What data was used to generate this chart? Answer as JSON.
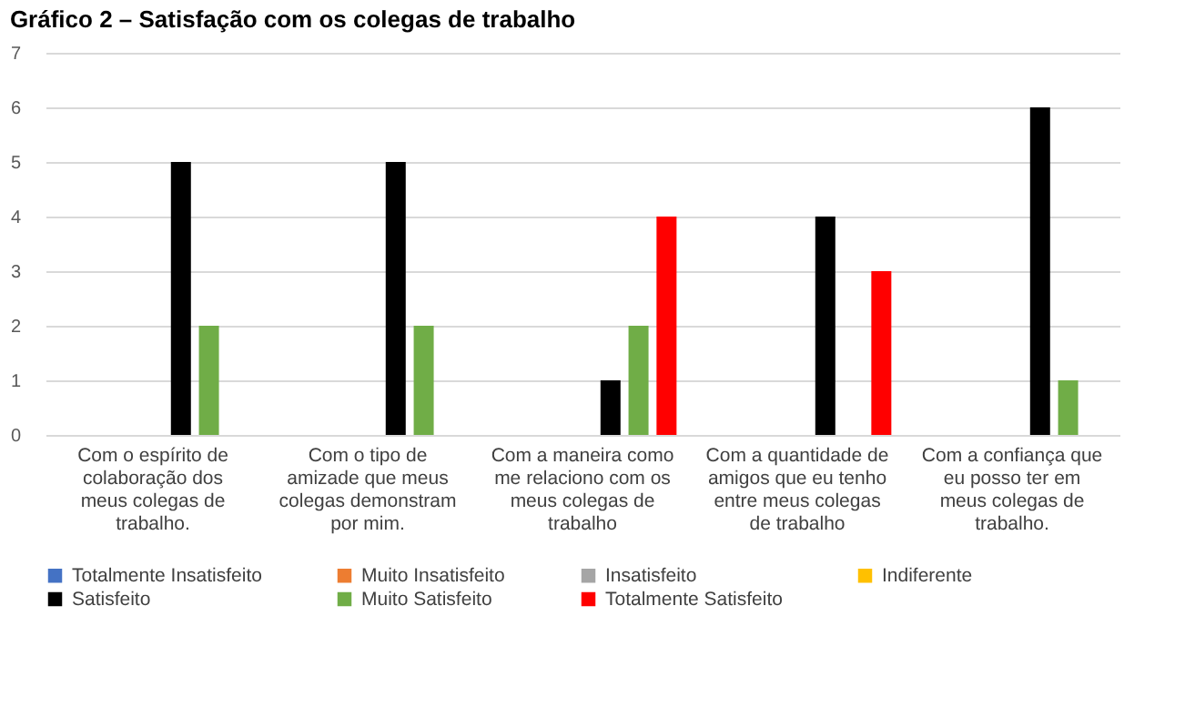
{
  "chart_data": {
    "type": "bar",
    "title": "Gráfico 2 – Satisfação com os colegas de trabalho",
    "categories": [
      "Com o espírito de colaboração dos meus colegas de trabalho.",
      "Com o tipo de amizade que meus colegas demonstram por mim.",
      "Com a maneira como me relaciono com os meus colegas de trabalho",
      "Com a quantidade de amigos que eu tenho entre meus colegas de trabalho",
      "Com a confiança que eu posso ter em meus colegas de trabalho."
    ],
    "series": [
      {
        "name": "Totalmente Insatisfeito",
        "color": "#4472c4",
        "values": [
          0,
          0,
          0,
          0,
          0
        ]
      },
      {
        "name": "Muito Insatisfeito",
        "color": "#ed7d31",
        "values": [
          0,
          0,
          0,
          0,
          0
        ]
      },
      {
        "name": "Insatisfeito",
        "color": "#a5a5a5",
        "values": [
          0,
          0,
          0,
          0,
          0
        ]
      },
      {
        "name": "Indiferente",
        "color": "#ffc000",
        "values": [
          0,
          0,
          0,
          0,
          0
        ]
      },
      {
        "name": "Satisfeito",
        "color": "#000000",
        "values": [
          5,
          5,
          1,
          4,
          6
        ]
      },
      {
        "name": "Muito Satisfeito",
        "color": "#70ad47",
        "values": [
          2,
          2,
          2,
          0,
          1
        ]
      },
      {
        "name": "Totalmente Satisfeito",
        "color": "#ff0000",
        "values": [
          0,
          0,
          4,
          3,
          0
        ]
      }
    ],
    "ylim": [
      0,
      7
    ],
    "yticks": [
      0,
      1,
      2,
      3,
      4,
      5,
      6,
      7
    ],
    "grid": "y",
    "legend": "bottom"
  }
}
